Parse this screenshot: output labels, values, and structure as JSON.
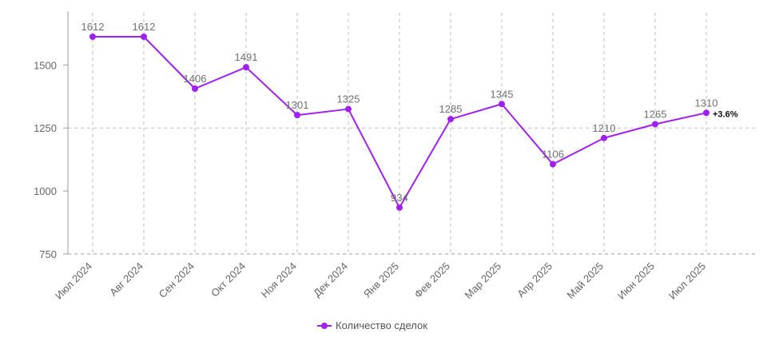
{
  "chart_data": {
    "type": "line",
    "categories": [
      "Июл 2024",
      "Авг 2024",
      "Сен 2024",
      "Окт 2024",
      "Ноя 2024",
      "Дек 2024",
      "Янв 2025",
      "Фев 2025",
      "Мар 2025",
      "Апр 2025",
      "Май 2025",
      "Июн 2025",
      "Июл 2025"
    ],
    "series": [
      {
        "name": "Количество сделок",
        "values": [
          1612,
          1612,
          1406,
          1491,
          1301,
          1325,
          934,
          1285,
          1345,
          1106,
          1210,
          1265,
          1310
        ],
        "color": "#a020f0"
      }
    ],
    "y_ticks": [
      750,
      1000,
      1250,
      1500
    ],
    "ylim": [
      750,
      1700
    ],
    "last_change_label": "+3.6%",
    "grid": "dashed vertical at categories, dashed horizontal at 1250 and 750",
    "legend_position": "bottom-center",
    "title": "",
    "xlabel": "",
    "ylabel": ""
  },
  "legend": {
    "label": "Количество сделок"
  }
}
